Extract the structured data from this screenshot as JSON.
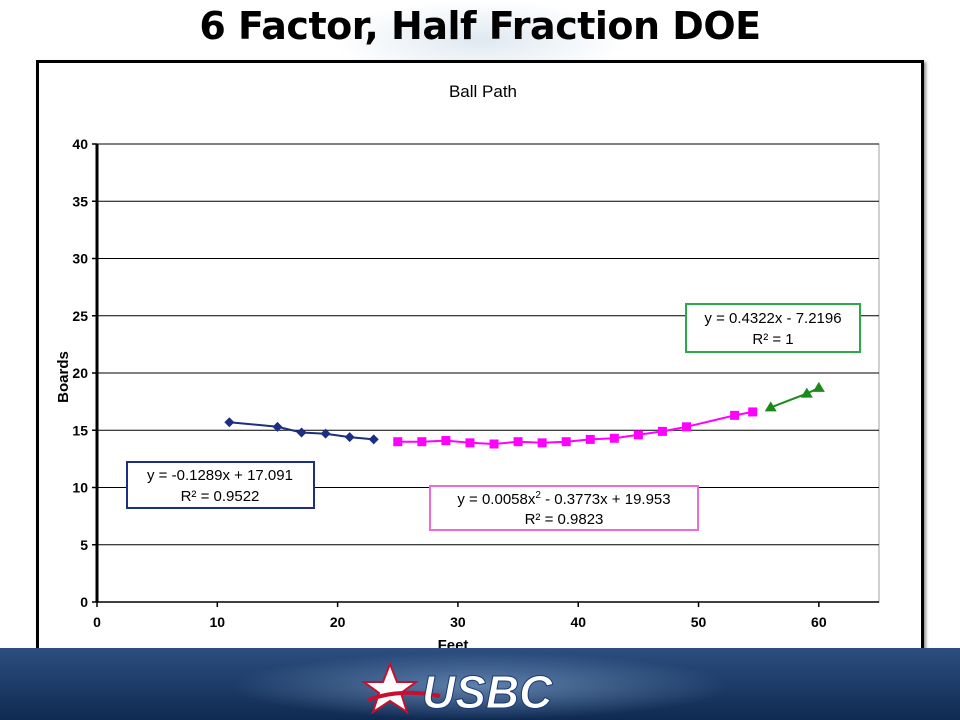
{
  "slide": {
    "title": "6 Factor, Half Fraction DOE",
    "logo_text": "USBC"
  },
  "colors": {
    "series_blue": "#1c2f80",
    "series_magenta": "#ff00ff",
    "series_green": "#1a8a1a",
    "box_magenta": "#f06ad6",
    "box_green": "#2aa84a"
  },
  "chart_data": {
    "type": "line",
    "title": "Ball Path",
    "xlabel": "Feet",
    "ylabel": "Boards",
    "xlim": [
      0,
      65
    ],
    "ylim": [
      0,
      40
    ],
    "xticks": [
      0,
      10,
      20,
      30,
      40,
      50,
      60
    ],
    "yticks": [
      0,
      5,
      10,
      15,
      20,
      25,
      30,
      35,
      40
    ],
    "grid": "horizontal",
    "legend": "none",
    "series": [
      {
        "marker": "diamond",
        "color": "#1c2f80",
        "x": [
          11,
          15,
          17,
          19,
          21,
          23
        ],
        "y": [
          15.7,
          15.3,
          14.8,
          14.7,
          14.4,
          14.2
        ]
      },
      {
        "marker": "square",
        "color": "#ff00ff",
        "x": [
          25,
          27,
          29,
          31,
          33,
          35,
          37,
          39,
          41,
          43,
          45,
          47,
          49,
          53,
          54.5
        ],
        "y": [
          14.0,
          14.0,
          14.1,
          13.9,
          13.8,
          14.0,
          13.9,
          14.0,
          14.2,
          14.3,
          14.6,
          14.9,
          15.3,
          16.3,
          16.6
        ]
      },
      {
        "marker": "triangle",
        "color": "#1a8a1a",
        "x": [
          56,
          59,
          60
        ],
        "y": [
          17.0,
          18.2,
          18.7
        ]
      }
    ],
    "annotations": [
      {
        "line1": "y = -0.1289x + 17.091",
        "line2": "R² = 0.9522"
      },
      {
        "line1a": "y = 0.0058x",
        "sup": "2",
        "line1b": " - 0.3773x + 19.953",
        "line2": "R² = 0.9823"
      },
      {
        "line1": "y = 0.4322x - 7.2196",
        "line2": "R² = 1"
      }
    ]
  }
}
